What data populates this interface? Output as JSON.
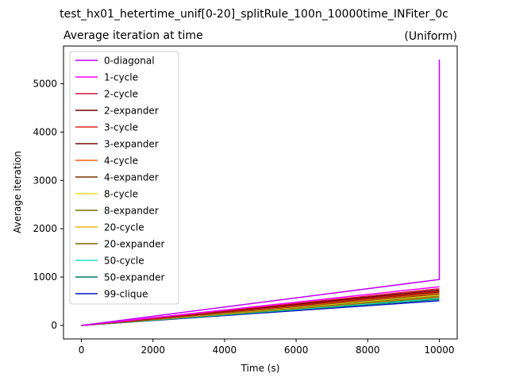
{
  "figure": {
    "suptitle": "test_hx01_hetertime_unif[0-20]_splitRule_100n_10000time_INFiter_0c"
  },
  "chart_data": {
    "type": "line",
    "title": "Average iteration at time",
    "title_right": "(Uniform)",
    "xlabel": "Time (s)",
    "ylabel": "Average iteration",
    "xlim": [
      -500,
      10500
    ],
    "ylim": [
      -280,
      5780
    ],
    "xticks": [
      0,
      2000,
      4000,
      6000,
      8000,
      10000
    ],
    "yticks": [
      0,
      1000,
      2000,
      3000,
      4000,
      5000
    ],
    "grid": false,
    "legend_position": "upper-left",
    "series": [
      {
        "name": "0-diagonal",
        "color": "#bf00ff",
        "x": [
          0,
          10000,
          10000
        ],
        "y": [
          0,
          950,
          5500
        ]
      },
      {
        "name": "1-cycle",
        "color": "#ff00ff",
        "x": [
          0,
          10000
        ],
        "y": [
          0,
          800
        ]
      },
      {
        "name": "2-cycle",
        "color": "#d2143c",
        "x": [
          0,
          10000
        ],
        "y": [
          0,
          760
        ]
      },
      {
        "name": "2-expander",
        "color": "#700000",
        "x": [
          0,
          10000
        ],
        "y": [
          0,
          730
        ]
      },
      {
        "name": "3-cycle",
        "color": "#e0281e",
        "x": [
          0,
          10000
        ],
        "y": [
          0,
          710
        ]
      },
      {
        "name": "3-expander",
        "color": "#7a0a00",
        "x": [
          0,
          10000
        ],
        "y": [
          0,
          690
        ]
      },
      {
        "name": "4-cycle",
        "color": "#f06414",
        "x": [
          0,
          10000
        ],
        "y": [
          0,
          670
        ]
      },
      {
        "name": "4-expander",
        "color": "#783200",
        "x": [
          0,
          10000
        ],
        "y": [
          0,
          650
        ]
      },
      {
        "name": "8-cycle",
        "color": "#e6dc1e",
        "x": [
          0,
          10000
        ],
        "y": [
          0,
          630
        ]
      },
      {
        "name": "8-expander",
        "color": "#786e00",
        "x": [
          0,
          10000
        ],
        "y": [
          0,
          610
        ]
      },
      {
        "name": "20-cycle",
        "color": "#f0b414",
        "x": [
          0,
          10000
        ],
        "y": [
          0,
          600
        ]
      },
      {
        "name": "20-expander",
        "color": "#786400",
        "x": [
          0,
          10000
        ],
        "y": [
          0,
          580
        ]
      },
      {
        "name": "50-cycle",
        "color": "#1ee6c8",
        "x": [
          0,
          10000
        ],
        "y": [
          0,
          560
        ]
      },
      {
        "name": "50-expander",
        "color": "#007860",
        "x": [
          0,
          10000
        ],
        "y": [
          0,
          540
        ]
      },
      {
        "name": "99-clique",
        "color": "#0014c8",
        "x": [
          0,
          10000
        ],
        "y": [
          0,
          510
        ]
      }
    ]
  }
}
